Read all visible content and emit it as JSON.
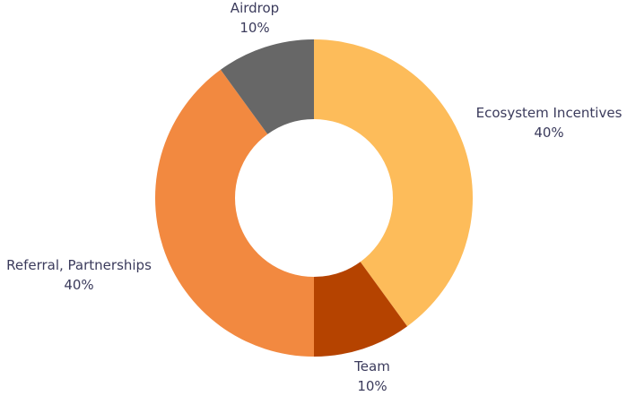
{
  "chart_data": {
    "type": "pie",
    "donut": true,
    "title": "",
    "legend": "none",
    "slices": [
      {
        "label": "Ecosystem Incentives",
        "value": 40,
        "display": "40%",
        "color": "#FDBC5A"
      },
      {
        "label": "Team",
        "value": 10,
        "display": "10%",
        "color": "#B54300"
      },
      {
        "label": "Referral, Partnerships",
        "value": 40,
        "display": "40%",
        "color": "#F28940"
      },
      {
        "label": "Airdrop",
        "value": 10,
        "display": "10%",
        "color": "#676767"
      }
    ]
  }
}
